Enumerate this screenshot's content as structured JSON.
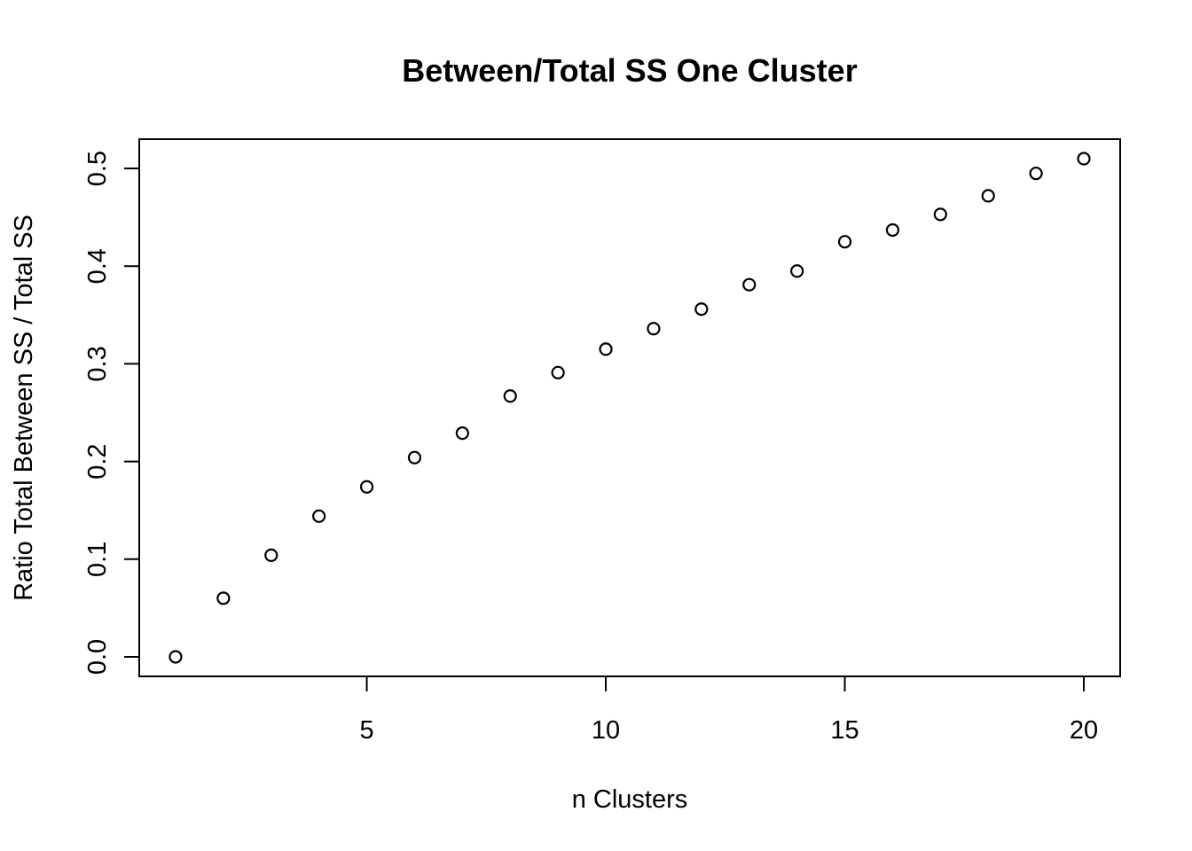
{
  "chart_data": {
    "type": "scatter",
    "title": "Between/Total SS One Cluster",
    "xlabel": "n Clusters",
    "ylabel": "Ratio Total Between SS / Total SS",
    "xlim": [
      0.24,
      20.76
    ],
    "ylim": [
      -0.02,
      0.53
    ],
    "x_ticks": [
      5,
      10,
      15,
      20
    ],
    "x_tick_labels": [
      "5",
      "10",
      "15",
      "20"
    ],
    "y_ticks": [
      0.0,
      0.1,
      0.2,
      0.3,
      0.4,
      0.5
    ],
    "y_tick_labels": [
      "0.0",
      "0.1",
      "0.2",
      "0.3",
      "0.4",
      "0.5"
    ],
    "grid": false,
    "legend": "none",
    "marker": "open-circle",
    "colors": {
      "points": "#000000",
      "axes": "#000000",
      "background": "#ffffff"
    },
    "series": [
      {
        "x": [
          1,
          2,
          3,
          4,
          5,
          6,
          7,
          8,
          9,
          10,
          11,
          12,
          13,
          14,
          15,
          16,
          17,
          18,
          19,
          20
        ],
        "y": [
          0.0,
          0.06,
          0.104,
          0.144,
          0.174,
          0.204,
          0.229,
          0.267,
          0.291,
          0.315,
          0.336,
          0.356,
          0.381,
          0.395,
          0.425,
          0.437,
          0.453,
          0.472,
          0.495,
          0.51
        ]
      }
    ]
  }
}
